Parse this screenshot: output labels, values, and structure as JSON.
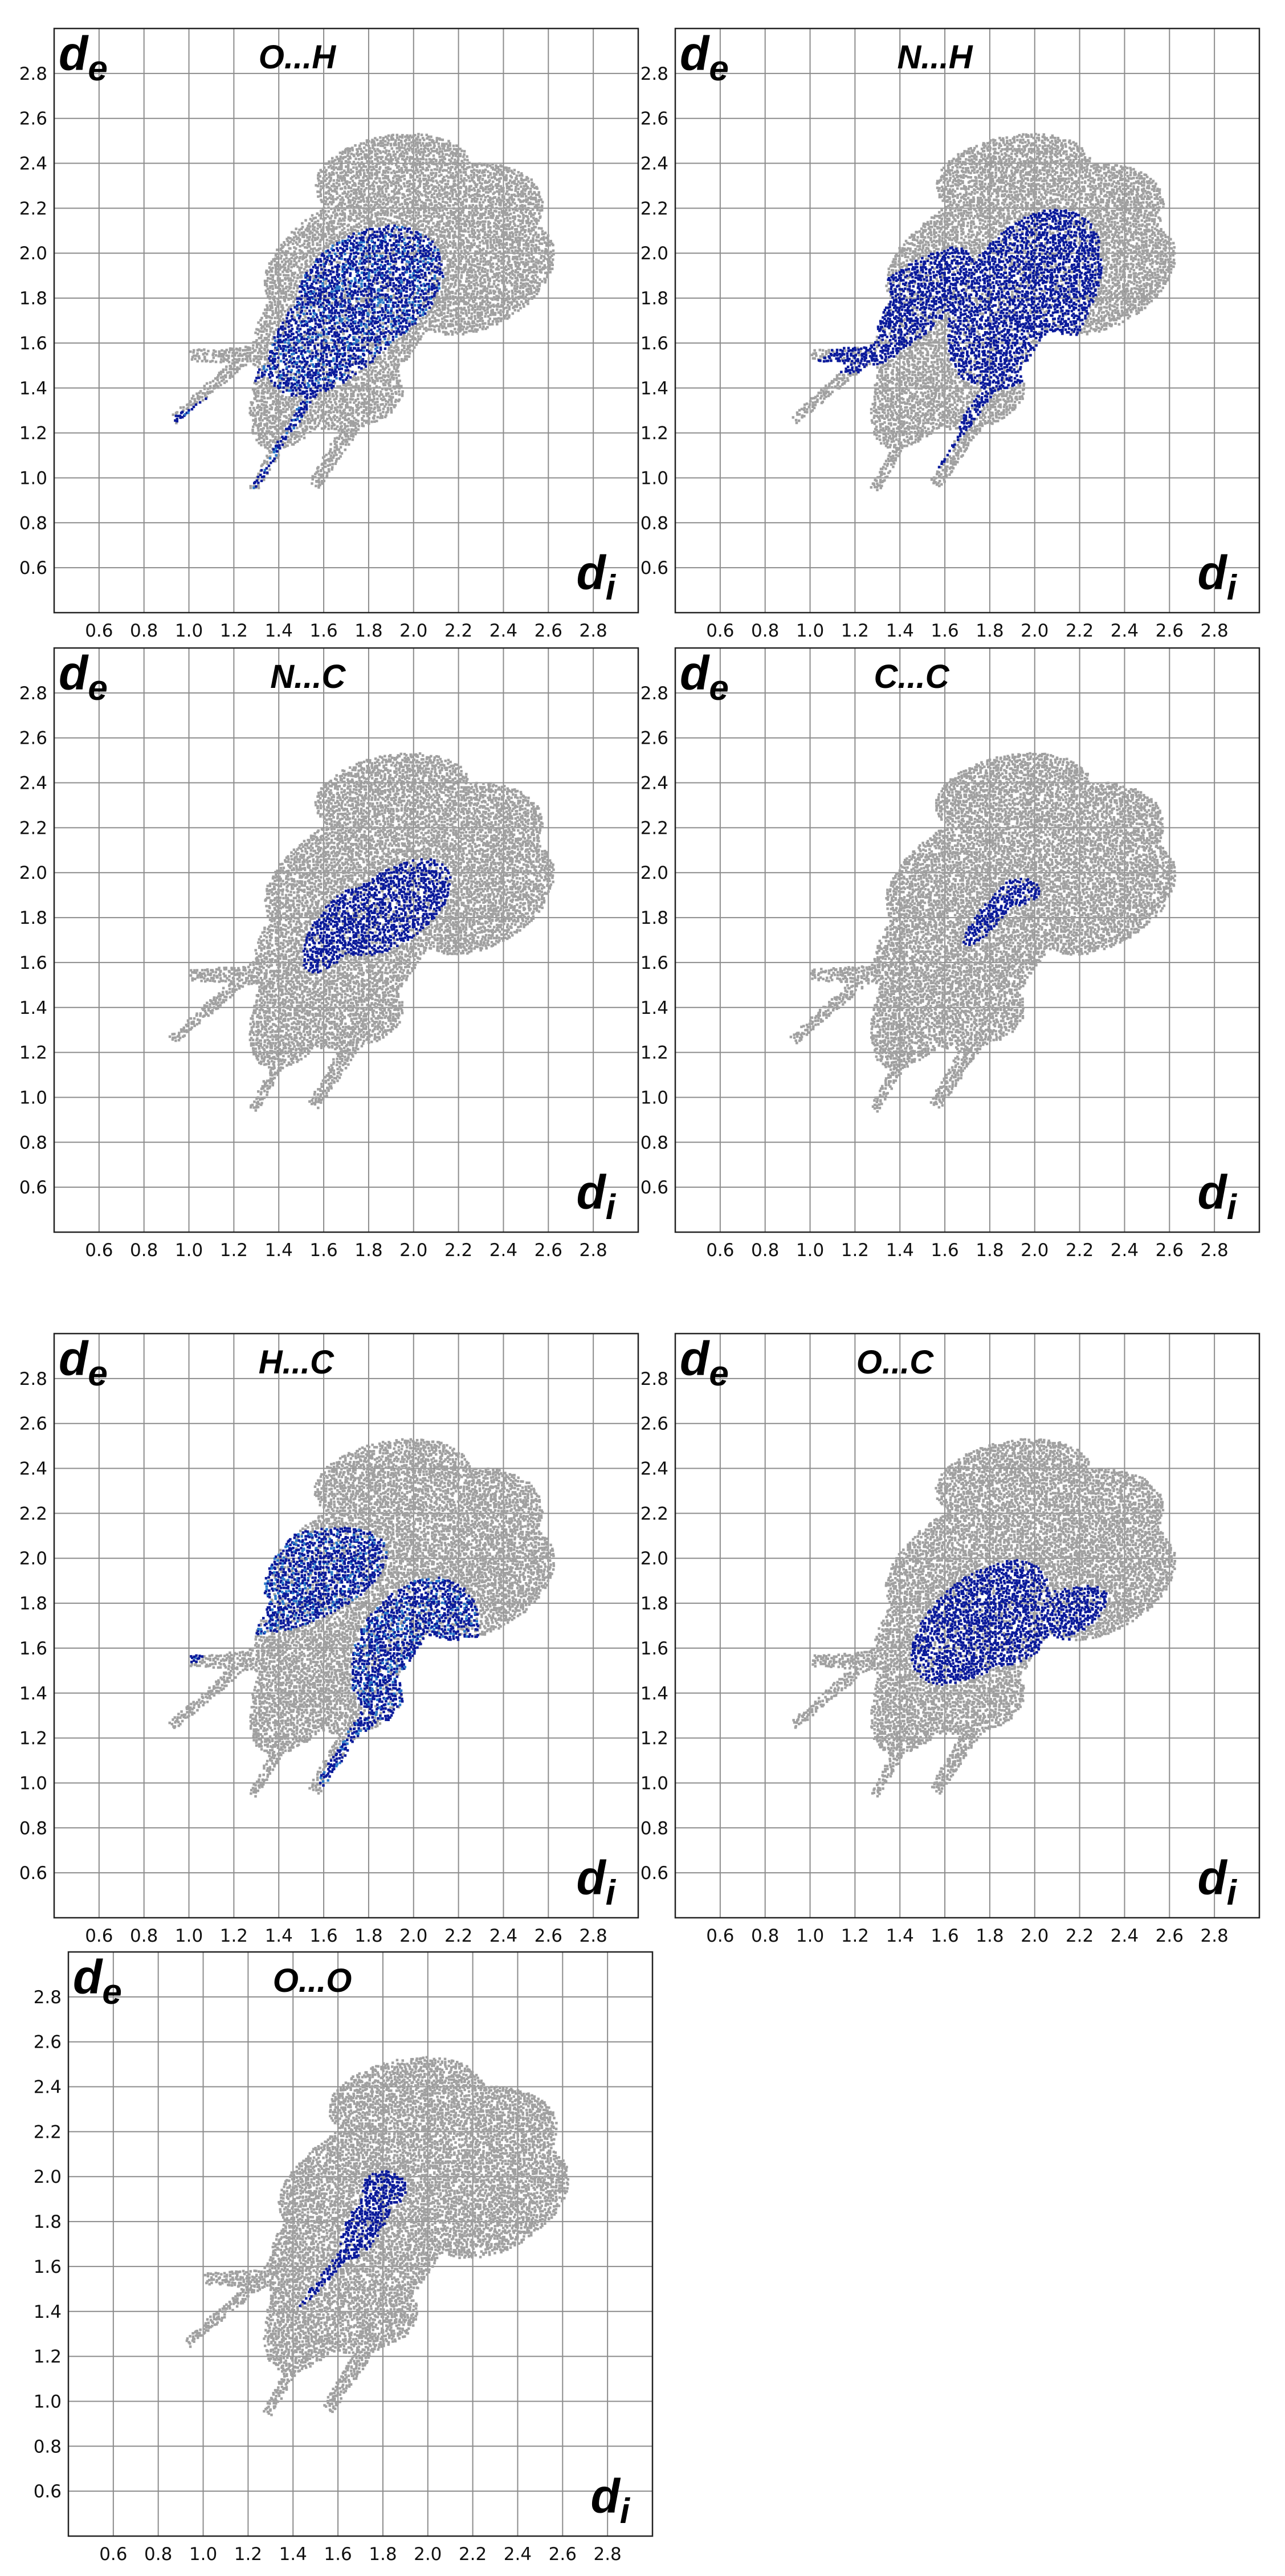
{
  "axes": {
    "y_label": {
      "main": "d",
      "sub": "e"
    },
    "x_label": {
      "main": "d",
      "sub": "i"
    },
    "ticks": [
      "0.6",
      "0.8",
      "1.0",
      "1.2",
      "1.4",
      "1.6",
      "1.8",
      "2.0",
      "2.2",
      "2.4",
      "2.6",
      "2.8"
    ]
  },
  "chart_data": [
    {
      "type": "scatter",
      "title": "O...H",
      "xlim": [
        0.4,
        3.0
      ],
      "ylim": [
        0.4,
        3.0
      ],
      "grid": true,
      "highlight": "O...H",
      "highlight_color": "#0a1a9a"
    },
    {
      "type": "scatter",
      "title": "N...H",
      "xlim": [
        0.4,
        3.0
      ],
      "ylim": [
        0.4,
        3.0
      ],
      "grid": true,
      "highlight": "N...H",
      "highlight_color": "#0a1a9a"
    },
    {
      "type": "scatter",
      "title": "N...C",
      "xlim": [
        0.4,
        3.0
      ],
      "ylim": [
        0.4,
        3.0
      ],
      "grid": true,
      "highlight": "N...C",
      "highlight_color": "#0a1a9a"
    },
    {
      "type": "scatter",
      "title": "C...C",
      "xlim": [
        0.4,
        3.0
      ],
      "ylim": [
        0.4,
        3.0
      ],
      "grid": true,
      "highlight": "C...C",
      "highlight_color": "#0a1a9a"
    },
    {
      "type": "scatter",
      "title": "H...C",
      "xlim": [
        0.4,
        3.0
      ],
      "ylim": [
        0.4,
        3.0
      ],
      "grid": true,
      "highlight": "H...C",
      "highlight_color": "#0a1a9a"
    },
    {
      "type": "scatter",
      "title": "O...C",
      "xlim": [
        0.4,
        3.0
      ],
      "ylim": [
        0.4,
        3.0
      ],
      "grid": true,
      "highlight": "O...C",
      "highlight_color": "#0a1a9a"
    },
    {
      "type": "scatter",
      "title": "O...O",
      "xlim": [
        0.4,
        3.0
      ],
      "ylim": [
        0.4,
        3.0
      ],
      "grid": true,
      "highlight": "O...O",
      "highlight_color": "#0a1a9a"
    }
  ],
  "colors": {
    "background_cloud": "#a0a0a0",
    "highlight": "#0a1a9a",
    "highlight_dense": "#2a78c8",
    "grid": "#8c8c8c"
  }
}
